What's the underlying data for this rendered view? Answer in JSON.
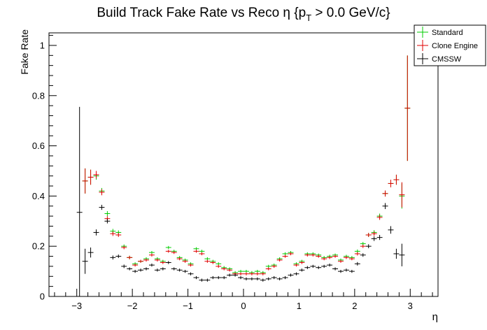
{
  "chart_data": {
    "type": "scatter",
    "title": "Build Track Fake Rate vs Reco η {p",
    "title_sub": "T",
    "title_tail": " > 0.0 GeV/c}",
    "xlabel": "η",
    "ylabel": "Fake Rate",
    "xlim": [
      -3.5,
      3.5
    ],
    "ylim": [
      0,
      1.05
    ],
    "x_ticks": [
      -3,
      -2,
      -1,
      0,
      1,
      2,
      3
    ],
    "x_tick_labels": [
      "−3",
      "−2",
      "−1",
      "0",
      "1",
      "2",
      "3"
    ],
    "y_ticks": [
      0,
      0.2,
      0.4,
      0.6,
      0.8,
      1
    ],
    "y_tick_labels": [
      "0",
      "0.2",
      "0.4",
      "0.6",
      "0.8",
      "1"
    ],
    "grid": false,
    "legend_position": "top-right",
    "bin_width": 0.1,
    "series": [
      {
        "name": "Standard",
        "color": "#00cc00",
        "x": [
          -2.85,
          -2.75,
          -2.65,
          -2.55,
          -2.45,
          -2.35,
          -2.25,
          -2.15,
          -2.05,
          -1.95,
          -1.85,
          -1.75,
          -1.65,
          -1.55,
          -1.45,
          -1.35,
          -1.25,
          -1.15,
          -1.05,
          -0.95,
          -0.85,
          -0.75,
          -0.65,
          -0.55,
          -0.45,
          -0.35,
          -0.25,
          -0.15,
          -0.05,
          0.05,
          0.15,
          0.25,
          0.35,
          0.45,
          0.55,
          0.65,
          0.75,
          0.85,
          0.95,
          1.05,
          1.15,
          1.25,
          1.35,
          1.45,
          1.55,
          1.65,
          1.75,
          1.85,
          1.95,
          2.05,
          2.15,
          2.25,
          2.35,
          2.45,
          2.55,
          2.65,
          2.75,
          2.85,
          2.95
        ],
        "y": [
          0.46,
          0.475,
          0.48,
          0.42,
          0.33,
          0.26,
          0.255,
          0.2,
          0.155,
          0.13,
          0.14,
          0.15,
          0.175,
          0.15,
          0.14,
          0.195,
          0.18,
          0.155,
          0.145,
          0.13,
          0.19,
          0.18,
          0.15,
          0.14,
          0.13,
          0.115,
          0.11,
          0.095,
          0.1,
          0.1,
          0.095,
          0.1,
          0.095,
          0.12,
          0.125,
          0.15,
          0.17,
          0.175,
          0.13,
          0.14,
          0.17,
          0.17,
          0.165,
          0.155,
          0.16,
          0.165,
          0.145,
          0.16,
          0.155,
          0.18,
          0.21,
          0.245,
          0.255,
          0.32,
          0.41,
          0.45,
          0.465,
          0.4,
          0.75
        ],
        "y_err": [
          0.05,
          0.03,
          0.015,
          0.012,
          0.01,
          0.009,
          0.008,
          0.007,
          0.007,
          0.006,
          0.006,
          0.006,
          0.006,
          0.006,
          0.006,
          0.006,
          0.006,
          0.006,
          0.006,
          0.006,
          0.006,
          0.006,
          0.006,
          0.006,
          0.006,
          0.006,
          0.006,
          0.006,
          0.006,
          0.006,
          0.006,
          0.006,
          0.006,
          0.006,
          0.006,
          0.006,
          0.006,
          0.006,
          0.006,
          0.006,
          0.006,
          0.006,
          0.006,
          0.006,
          0.006,
          0.006,
          0.006,
          0.006,
          0.006,
          0.007,
          0.007,
          0.008,
          0.009,
          0.01,
          0.012,
          0.015,
          0.02,
          0.05,
          0.21
        ]
      },
      {
        "name": "Clone Engine",
        "color": "#e00000",
        "x": [
          -2.85,
          -2.75,
          -2.65,
          -2.55,
          -2.45,
          -2.35,
          -2.25,
          -2.15,
          -2.05,
          -1.95,
          -1.85,
          -1.75,
          -1.65,
          -1.55,
          -1.45,
          -1.35,
          -1.25,
          -1.15,
          -1.05,
          -0.95,
          -0.85,
          -0.75,
          -0.65,
          -0.55,
          -0.45,
          -0.35,
          -0.25,
          -0.15,
          -0.05,
          0.05,
          0.15,
          0.25,
          0.35,
          0.45,
          0.55,
          0.65,
          0.75,
          0.85,
          0.95,
          1.05,
          1.15,
          1.25,
          1.35,
          1.45,
          1.55,
          1.65,
          1.75,
          1.85,
          1.95,
          2.05,
          2.15,
          2.25,
          2.35,
          2.45,
          2.55,
          2.65,
          2.75,
          2.85,
          2.95
        ],
        "y": [
          0.46,
          0.475,
          0.485,
          0.415,
          0.31,
          0.25,
          0.245,
          0.195,
          0.155,
          0.125,
          0.14,
          0.145,
          0.165,
          0.145,
          0.135,
          0.18,
          0.175,
          0.15,
          0.14,
          0.125,
          0.18,
          0.17,
          0.14,
          0.135,
          0.12,
          0.11,
          0.105,
          0.09,
          0.09,
          0.09,
          0.09,
          0.09,
          0.09,
          0.11,
          0.12,
          0.145,
          0.16,
          0.17,
          0.125,
          0.135,
          0.165,
          0.165,
          0.16,
          0.15,
          0.155,
          0.16,
          0.14,
          0.155,
          0.15,
          0.17,
          0.2,
          0.245,
          0.25,
          0.315,
          0.41,
          0.45,
          0.465,
          0.405,
          0.75
        ],
        "y_err": [
          0.05,
          0.03,
          0.015,
          0.012,
          0.01,
          0.009,
          0.008,
          0.007,
          0.007,
          0.006,
          0.006,
          0.006,
          0.006,
          0.006,
          0.006,
          0.006,
          0.006,
          0.006,
          0.006,
          0.006,
          0.006,
          0.006,
          0.006,
          0.006,
          0.006,
          0.006,
          0.006,
          0.006,
          0.006,
          0.006,
          0.006,
          0.006,
          0.006,
          0.006,
          0.006,
          0.006,
          0.006,
          0.006,
          0.006,
          0.006,
          0.006,
          0.006,
          0.006,
          0.006,
          0.006,
          0.006,
          0.006,
          0.006,
          0.006,
          0.007,
          0.007,
          0.008,
          0.009,
          0.01,
          0.012,
          0.015,
          0.02,
          0.05,
          0.21
        ]
      },
      {
        "name": "CMSSW",
        "color": "#000000",
        "x": [
          -2.95,
          -2.85,
          -2.75,
          -2.65,
          -2.55,
          -2.45,
          -2.35,
          -2.25,
          -2.15,
          -2.05,
          -1.95,
          -1.85,
          -1.75,
          -1.65,
          -1.55,
          -1.45,
          -1.35,
          -1.25,
          -1.15,
          -1.05,
          -0.95,
          -0.85,
          -0.75,
          -0.65,
          -0.55,
          -0.45,
          -0.35,
          -0.25,
          -0.15,
          -0.05,
          0.05,
          0.15,
          0.25,
          0.35,
          0.45,
          0.55,
          0.65,
          0.75,
          0.85,
          0.95,
          1.05,
          1.15,
          1.25,
          1.35,
          1.45,
          1.55,
          1.65,
          1.75,
          1.85,
          1.95,
          2.05,
          2.15,
          2.25,
          2.35,
          2.45,
          2.55,
          2.65,
          2.75,
          2.85
        ],
        "y": [
          0.335,
          0.14,
          0.175,
          0.255,
          0.355,
          0.3,
          0.155,
          0.16,
          0.12,
          0.11,
          0.1,
          0.105,
          0.11,
          0.125,
          0.105,
          0.11,
          0.135,
          0.11,
          0.105,
          0.1,
          0.09,
          0.075,
          0.065,
          0.065,
          0.075,
          0.075,
          0.075,
          0.085,
          0.085,
          0.075,
          0.07,
          0.07,
          0.07,
          0.065,
          0.07,
          0.075,
          0.07,
          0.075,
          0.085,
          0.09,
          0.105,
          0.115,
          0.12,
          0.115,
          0.12,
          0.125,
          0.11,
          0.1,
          0.105,
          0.1,
          0.13,
          0.165,
          0.2,
          0.23,
          0.235,
          0.36,
          0.265,
          0.17,
          0.165
        ],
        "y_err": [
          0.42,
          0.05,
          0.02,
          0.012,
          0.01,
          0.009,
          0.008,
          0.007,
          0.007,
          0.006,
          0.006,
          0.006,
          0.006,
          0.006,
          0.006,
          0.006,
          0.006,
          0.006,
          0.006,
          0.006,
          0.006,
          0.006,
          0.006,
          0.006,
          0.006,
          0.006,
          0.006,
          0.006,
          0.006,
          0.006,
          0.006,
          0.006,
          0.006,
          0.006,
          0.006,
          0.006,
          0.006,
          0.006,
          0.006,
          0.006,
          0.006,
          0.006,
          0.006,
          0.006,
          0.006,
          0.006,
          0.006,
          0.006,
          0.006,
          0.006,
          0.007,
          0.007,
          0.008,
          0.009,
          0.01,
          0.012,
          0.015,
          0.02,
          0.045
        ]
      }
    ]
  }
}
